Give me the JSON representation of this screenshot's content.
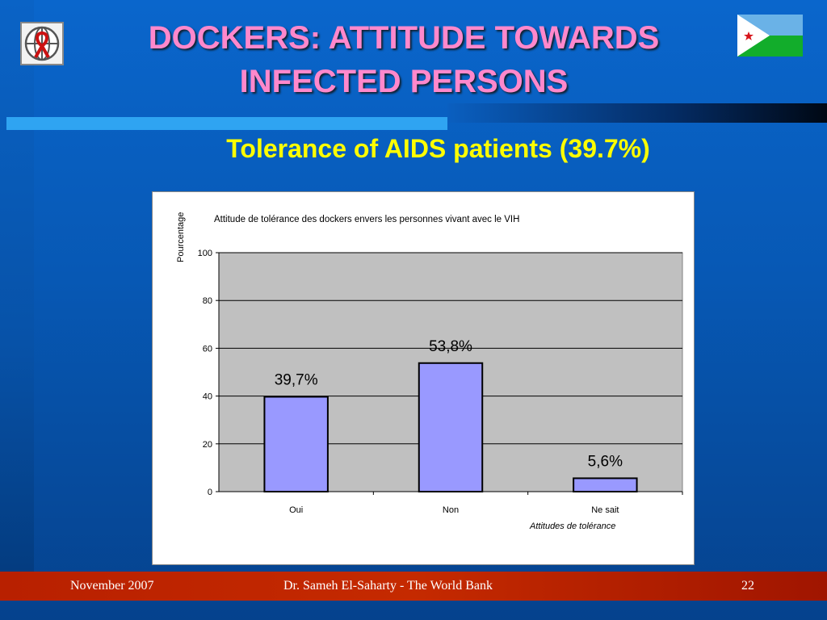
{
  "slide": {
    "title_line1": "DOCKERS: ATTITUDE TOWARDS",
    "title_line2": "INFECTED PERSONS",
    "subtitle": "Tolerance of AIDS patients (39.7%)"
  },
  "footer": {
    "date": "November 2007",
    "author": "Dr. Sameh El-Saharty - The World Bank",
    "page": "22"
  },
  "colors": {
    "title": "#ff88cc",
    "subtitle": "#ffff00",
    "bar": "#9999ff",
    "plot_bg": "#c0c0c0",
    "footer": "#c02800"
  },
  "icons": {
    "logo": "world-bank-aids-ribbon-logo",
    "flag": "djibouti-flag"
  },
  "chart_data": {
    "type": "bar",
    "title": "Attitude de tolérance des dockers envers les personnes vivant avec le VIH",
    "xlabel": "Attitudes de tolérance",
    "ylabel": "Pourcentage",
    "categories": [
      "Oui",
      "Non",
      "Ne sait"
    ],
    "values": [
      39.7,
      53.8,
      5.6
    ],
    "data_labels": [
      "39,7%",
      "53,8%",
      "5,6%"
    ],
    "ylim": [
      0,
      100
    ],
    "yticks": [
      0,
      20,
      40,
      60,
      80,
      100
    ],
    "grid": true,
    "legend": false
  }
}
